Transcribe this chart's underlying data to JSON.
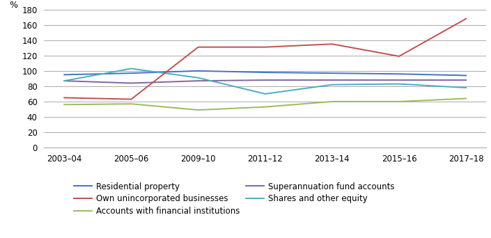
{
  "x_labels": [
    "2003–04",
    "2005–06",
    "2009–10",
    "2011–12",
    "2013–14",
    "2015–16",
    "2017–18"
  ],
  "x_positions": [
    0,
    1,
    2,
    3,
    4,
    5,
    6
  ],
  "series": {
    "Residential property": {
      "values": [
        95,
        97,
        100,
        98,
        97,
        96,
        94
      ],
      "color": "#4472C4",
      "zorder": 3
    },
    "Own unincorporated businesses": {
      "values": [
        65,
        63,
        131,
        131,
        135,
        119,
        168
      ],
      "color": "#C0504D",
      "zorder": 4
    },
    "Accounts with financial institutions": {
      "values": [
        56,
        57,
        49,
        53,
        60,
        60,
        64
      ],
      "color": "#9BBB59",
      "zorder": 2
    },
    "Superannuation fund accounts": {
      "values": [
        87,
        84,
        87,
        88,
        88,
        88,
        88
      ],
      "color": "#8064A2",
      "zorder": 2
    },
    "Shares and other equity": {
      "values": [
        87,
        103,
        91,
        70,
        82,
        83,
        78
      ],
      "color": "#4BACC6",
      "zorder": 3
    }
  },
  "ylabel": "%",
  "ylim": [
    0,
    180
  ],
  "yticks": [
    0,
    20,
    40,
    60,
    80,
    100,
    120,
    140,
    160,
    180
  ],
  "background_color": "#FFFFFF",
  "grid_color": "#AAAAAA",
  "legend_order": [
    "Residential property",
    "Own unincorporated businesses",
    "Accounts with financial institutions",
    "Superannuation fund accounts",
    "Shares and other equity"
  ]
}
